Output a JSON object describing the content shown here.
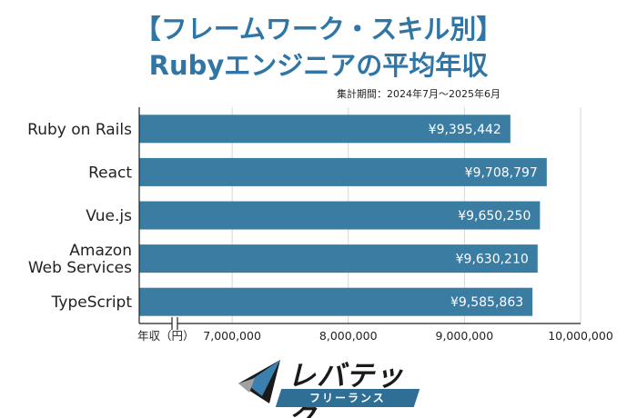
{
  "title_line1": "【フレームワーク・スキル別】",
  "title_line2": "Rubyエンジニアの平均年収",
  "period": "集計期間：2024年7月〜2025年6月",
  "chart_data": {
    "type": "bar",
    "orientation": "horizontal",
    "categories": [
      "Ruby on Rails",
      "React",
      "Vue.js",
      "Amazon Web Services",
      "TypeScript"
    ],
    "category_lines": [
      [
        "Ruby on Rails"
      ],
      [
        "React"
      ],
      [
        "Vue.js"
      ],
      [
        "Amazon",
        "Web Services"
      ],
      [
        "TypeScript"
      ]
    ],
    "values": [
      9395442,
      9708797,
      9650250,
      9630210,
      9585863
    ],
    "value_labels": [
      "¥9,395,442",
      "¥9,708,797",
      "¥9,650,250",
      "¥9,630,210",
      "¥9,585,863"
    ],
    "xlabel": "年収（円）",
    "xticks": [
      7000000,
      8000000,
      9000000,
      10000000
    ],
    "xtick_labels": [
      "7,000,000",
      "8,000,000",
      "9,000,000",
      "10,000,000"
    ],
    "xlim": [
      6200000,
      10000000
    ],
    "axis_break": true,
    "grid": true,
    "bar_color": "#3b7ca3"
  },
  "logo": {
    "main": "レバテック",
    "sub": "フリーランス",
    "colors": {
      "dark": "#1a1a1a",
      "blue": "#2f6f96",
      "gray": "#9a9a9a"
    }
  }
}
